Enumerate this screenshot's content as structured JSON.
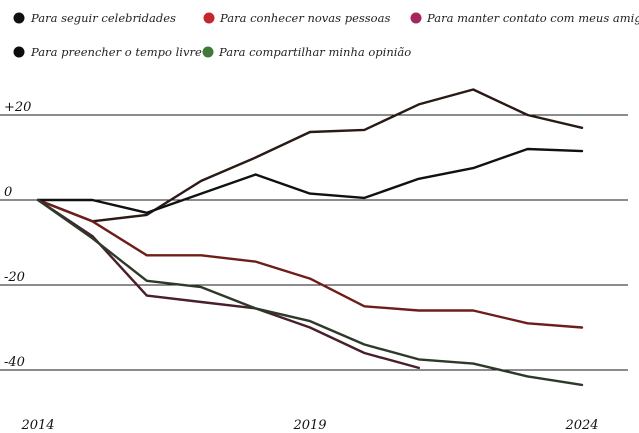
{
  "chart_data": {
    "type": "line",
    "title": "",
    "xlabel": "",
    "ylabel": "",
    "x": [
      2014,
      2015,
      2016,
      2017,
      2018,
      2019,
      2020,
      2021,
      2022,
      2023,
      2024
    ],
    "x_tick_labels": [
      "2014",
      "2019",
      "2024"
    ],
    "y_ticks": [
      20,
      0,
      -20,
      -40
    ],
    "y_tick_labels": [
      "+20",
      "0",
      "-20",
      "-40"
    ],
    "ylim": [
      -46,
      28
    ],
    "xlim": [
      2014,
      2024.5
    ],
    "grid": "horizontal",
    "legend_position": "top",
    "series": [
      {
        "name": "Para seguir celebridades",
        "color": "#2a1a16",
        "x": [
          2014,
          2015,
          2016,
          2017,
          2018,
          2019,
          2020,
          2021,
          2022,
          2023,
          2024
        ],
        "values": [
          0,
          -5,
          -3.5,
          4.5,
          10,
          16,
          16.5,
          22.5,
          26,
          20,
          17
        ]
      },
      {
        "name": "Para conhecer novas pessoas",
        "color": "#6e1e1a",
        "x": [
          2014,
          2015,
          2016,
          2017,
          2018,
          2019,
          2020,
          2021,
          2022,
          2023,
          2024
        ],
        "values": [
          0,
          -5,
          -13,
          -13,
          -14.5,
          -18.5,
          -25,
          -26,
          -26,
          -29,
          -30
        ]
      },
      {
        "name": "Para manter contato com meus amigos",
        "color": "#4a1f2c",
        "x": [
          2014,
          2015,
          2016,
          2017,
          2018,
          2019,
          2020,
          2021
        ],
        "values": [
          0,
          -8.5,
          -22.5,
          -24,
          -25.5,
          -30,
          -36,
          -39.5
        ]
      },
      {
        "name": "Para preencher o tempo livre",
        "color": "#111111",
        "x": [
          2014,
          2015,
          2016,
          2017,
          2018,
          2019,
          2020,
          2021,
          2022,
          2023,
          2024
        ],
        "values": [
          0,
          0,
          -3,
          1.5,
          6,
          1.5,
          0.5,
          5,
          7.5,
          12,
          11.5
        ]
      },
      {
        "name": "Para compartilhar minha opinião",
        "color": "#2d3a2a",
        "x": [
          2014,
          2015,
          2016,
          2017,
          2018,
          2019,
          2020,
          2021,
          2022,
          2023,
          2024
        ],
        "values": [
          0,
          -9,
          -19,
          -20.5,
          -25.5,
          -28.5,
          -34,
          -37.5,
          -38.5,
          -41.5,
          -43.5
        ]
      }
    ]
  },
  "legend": {
    "markers": [
      {
        "color": "#111111"
      },
      {
        "color": "#c1272d"
      },
      {
        "color": "#a3275a"
      },
      {
        "color": "#0d0d0d"
      },
      {
        "color": "#3e7a3a"
      }
    ]
  }
}
